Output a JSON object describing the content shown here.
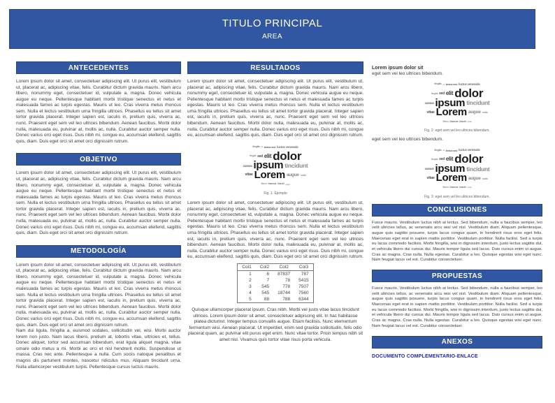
{
  "banner": {
    "title": "TITULO PRINCIPAL",
    "subtitle": "AREA"
  },
  "colors": {
    "accent": "#3156a2",
    "accent_border": "#27457f",
    "link": "#2222c8"
  },
  "left": {
    "antecedentes": {
      "title": "ANTECEDENTES",
      "body": "Lorem ipsum dolor sit amet, consectetuer adipiscing elit. Ut purus elit, vestibulum ut, placerat ac, adipiscing vitae, felis. Curabitur dictum gravida mauris. Nam arcu libero, nonummy eget, consectetuer id, vulputate a, magna. Donec vehicula augue eu neque. Pellentesque habitant morbi tristique senectus et netus et malesuada fames ac turpis egestas. Mauris ut leo. Cras viverra metus rhoncus sem. Nulla et lectus vestibulum urna fringilla ultrices. Phasellus eu tellus sit amet tortor gravida placerat. Integer sapien est, iaculis in, pretium quis, viverra ac, nunc. Praesent eget sem vel leo ultrices bibendum. Aenean faucibus. Morbi dolor nulla, malesuada eu, pulvinar at, mollis ac, nulla. Curabitur auctor semper nulla. Donec varius orci eget risus. Duis nibh mi, congue eu, accumsan eleifend, sagittis quis, diam. Duis eget orci sit amet orci dignissim rutrum."
    },
    "objetivo": {
      "title": "OBJETIVO",
      "body": "Lorem ipsum dolor sit amet, consectetuer adipiscing elit. Ut purus elit, vestibulum ut, placerat ac, adipiscing vitae, felis. Curabitur dictum gravida mauris. Nam arcu libero, nonummy eget, consectetuer id, vulputate a, magna. Donec vehicula augue eu neque. Pellentesque habitant morbi tristique senectus et netus et malesuada fames ac turpis egestas. Mauris ut leo. Cras viverra metus rhoncus sem. Nulla et lectus vestibulum urna fringilla ultrices. Phasellus eu tellus sit amet tortor gravida placerat. Integer sapien est, iaculis in, pretium quis, viverra ac, nunc. Praesent eget sem vel leo ultrices bibendum. Aenean faucibus. Morbi dolor nulla, malesuada eu, pulvinar at, mollis ac, nulla. Curabitur auctor semper nulla. Donec varius orci eget risus. Duis nibh mi, congue eu, accumsan eleifend, sagittis quis, diam. Duis eget orci sit amet orci dignissim rutrum."
    },
    "metodologia": {
      "title": "METODOLOGÍA",
      "body1": "Lorem ipsum dolor sit amet, consectetuer adipiscing elit. Ut purus elit, vestibulum ut, placerat ac, adipiscing vitae, felis. Curabitur dictum gravida mauris. Nam arcu libero, nonummy eget, consectetuer id, vulputate a, magna. Donec vehicula augue eu neque. Pellentesque habitant morbi tristique senectus et netus et malesuada fames ac turpis egestas. Mauris ut leo. Cras viverra metus rhoncus sem. Nulla et lectus vestibulum urna fringilla ultrices. Phasellus eu tellus sit amet tortor gravida placerat. Integer sapien est, iaculis in, pretium quis, viverra ac, nunc. Praesent eget sem vel leo ultrices bibendum. Aenean faucibus. Morbi dolor nulla, malesuada eu, pulvinar at, mollis ac, nulla. Curabitur auctor semper nulla. Donec varius orci eget risus. Duis nibh mi, congue eu, accumsan eleifend, sagittis quis, diam. Duis eget orci sit amet orci dignissim rutrum.",
      "body2": "Nam dui ligula, fringilla a, euismod sodales, sollicitudin vel, wisi. Morbi auctor lorem non justo. Nam lacus libero, pretium at, lobortis vitae, ultricies et, tellus. Donec aliquet, tortor sed accumsan bibendum, erat ligula aliquet magna, vitae ornare odio metus a mi. Morbi ac orci et nisl hendrerit mollis. Suspendisse ut massa. Cras nec ante. Pellentesque a nulla. Cum sociis natoque penatibus et magnis dis parturient montes, nascetur ridiculus mus. Aliquam tincidunt urna. Nulla ullamcorper vestibulum turpis. Pellentesque cursus luctus mauris."
    }
  },
  "middle": {
    "resultados": {
      "title": "RESULTADOS",
      "body1": "Lorem ipsum dolor sit amet, consectetuer adipiscing elit. Ut purus elit, vestibulum ut, placerat ac, adipiscing vitae, felis. Curabitur dictum gravida mauris. Nam arcu libero, nonummy eget, consectetuer id, vulputate a, magna. Donec vehicula augue eu neque. Pellentesque habitant morbi tristique senectus et netus et malesuada fames ac turpis egestas. Mauris ut leo. Cras viverra metus rhoncus sem. Nulla et lectus vestibulum urna fringilla ultrices. Phasellus eu tellus sit amet tortor gravida placerat. Integer sapien est, iaculis in, pretium quis, viverra ac, nunc. Praesent eget sem vel leo ultrices bibendum. Aenean faucibus. Morbi dolor nulla, malesuada eu, pulvinar at, mollis ac, nulla. Curabitur auctor semper nulla. Donec varius orci eget risus. Duis nibh mi, congue eu, accumsan eleifend, sagittis quis, diam. Duis eget orci sit amet orci dignissim rutrum.",
      "fig1_caption": "Fig. 1: Ejemplo",
      "body2": "Lorem ipsum dolor sit amet, consectetuer adipiscing elit. Ut purus elit, vestibulum ut, placerat ac, adipiscing vitae, felis. Curabitur dictum gravida mauris. Nam arcu libero, nonummy eget, consectetuer id, vulputate a, magna. Donec vehicula augue eu neque. Pellentesque habitant morbi tristique senectus et netus et malesuada fames ac turpis egestas. Mauris ut leo. Cras viverra metus rhoncus sem. Nulla et lectus vestibulum urna fringilla ultrices. Phasellus eu tellus sit amet tortor gravida placerat. Integer sapien est, iaculis in, pretium quis, viverra ac, nunc. Praesent eget sem vel leo ultrices bibendum. Aenean faucibus. Morbi dolor nulla, malesuada eu, pulvinar at, mollis ac, nulla. Curabitur auctor semper nulla. Donec varius orci eget risus. Duis nibh mi, congue eu, accumsan eleifend, sagittis quis, diam. Duis eget orci sit amet orci dignissim rutrum.",
      "body3": "Quisque ullamcorper placerat ipsum. Cras nibh. Morbi vel justo vitae lacus tincidunt ultrices. Lorem ipsum dolor sit amet, consectetuer adipiscing elit. In hac habitasse platea dictumst. Integer tempus convallis augue. Etiam facilisis. Nunc elementum fermentum wisi. Aenean placerat. Ut imperdiet, enim sed gravida sollicitudin, felis odio placerat quam, ac pulvinar elit purus eget enim. Nunc vitae tortor. Proin tempus nibh sit amet nisl. Vivamus quis tortor vitae risus porta vehicula."
    }
  },
  "right": {
    "intro_heading": "Lorem ipsum dolor sit",
    "intro_line": "eget sem vel leo ultrices bibendum.",
    "fig2_caption": "Fig. 2: eget sem vel leo ultrices bibendum.",
    "mid_line": "eget sem vel leo ultrices bibendum.",
    "fig3_caption": "Fig. 3: eget sem vel leo ultrices bibendum.",
    "conclusiones": {
      "title": "CONCLUSIONES",
      "body": "Fusce mauris. Vestibulum luctus nibh at lectus. Sed bibendum, nulla a faucibus semper, leo velit ultricies tellus, ac venenatis arcu wisi vel nisl. Vestibulum diam. Aliquam pellentesque, augue quis sagittis posuere, turpis lacus congue quam, in hendrerit risus eros eget felis. Maecenas eget erat in sapien mattis porttitor. Vestibulum porttitor. Nulla facilisi. Sed a turpis eu lacus commodo facilisis. Morbi fringilla, wisi in dignissim interdum, justo lectus sagittis dui, et vehicula libero dui cursus dui. Mauris tempor ligula sed lacus. Duis cursus enim ut augue. Cras ac magna. Cras nulla. Nulla egestas. Curabitur a leo. Quisque egestas wisi eget nunc. Nam feugiat lacus vel est. Curabitur consectetuer."
    },
    "propuestas": {
      "title": "PROPUESTAS",
      "body": "Fusce mauris. Vestibulum luctus nibh at lectus. Sed bibendum, nulla a faucibus semper, leo velit ultricies tellus, ac venenatis arcu wisi vel nisl. Vestibulum diam. Aliquam pellentesque, augue quis sagittis posuere, turpis lacus congue quam, in hendrerit risus eros eget felis. Maecenas eget erat in sapien mattis porttitor. Vestibulum porttitor. Nulla facilisi. Sed a turpis eu lacus commodo facilisis. Morbi fringilla, wisi in dignissim interdum, justo lectus sagittis dui, et vehicula libero dui cursus dui. Mauris tempor ligula sed lacus. Duis cursus enim ut augue. Cras ac magna. Cras nulla. Nulla egestas. Curabitur a leo. Quisque egestas wisi eget nunc. Nam feugiat lacus vel est. Curabitur consectetuer."
    },
    "anexos": {
      "title": "ANEXOS",
      "link_label": "DOCUMENTO COMPLEMENTARIO-ENLACE"
    }
  },
  "table": {
    "headers": [
      "Col1",
      "Col2",
      "Col2",
      "Col3"
    ],
    "rows": [
      [
        "1",
        "6",
        "87837",
        "787"
      ],
      [
        "2",
        "7",
        "78",
        "5415"
      ],
      [
        "3",
        "545",
        "778",
        "7507"
      ],
      [
        "4",
        "545",
        "18744",
        "7560"
      ],
      [
        "5",
        "88",
        "788",
        "6344"
      ]
    ]
  },
  "wordcloud": {
    "rows": [
      [
        {
          "t": "fringilla",
          "s": 3.5,
          "c": "#8a8a8a"
        },
        {
          "t": "ut",
          "s": 3,
          "c": "#9a9a9a"
        },
        {
          "t": "lectus sed",
          "s": 4,
          "c": "#6a6a6a"
        },
        {
          "t": "luctus venenatis",
          "s": 4.5,
          "c": "#777777"
        }
      ],
      [
        {
          "t": "feugiat",
          "s": 3.5,
          "c": "#999999"
        },
        {
          "t": "sed",
          "s": 5,
          "c": "#555555"
        },
        {
          "t": "elit",
          "s": 8,
          "c": "#3a3a3a"
        },
        {
          "t": "dolor",
          "s": 17,
          "c": "#1c1c1c"
        }
      ],
      [
        {
          "t": "cursus",
          "s": 4.5,
          "c": "#666666"
        },
        {
          "t": "ipsum",
          "s": 15,
          "c": "#141414"
        },
        {
          "t": "tincidunt",
          "s": 8.5,
          "c": "#8c8c8c"
        }
      ],
      [
        {
          "t": "vitae",
          "s": 5.5,
          "c": "#555555"
        },
        {
          "t": "Lorem",
          "s": 15,
          "c": "#141414"
        },
        {
          "t": "augue",
          "s": 6.5,
          "c": "#888888"
        },
        {
          "t": "nulla",
          "s": 4,
          "c": "#999999"
        }
      ],
      [
        {
          "t": "libero",
          "s": 3.5,
          "c": "#999999"
        },
        {
          "t": "rhoncus",
          "s": 3.5,
          "c": "#777777"
        },
        {
          "t": "blandit",
          "s": 3.5,
          "c": "#8a8a8a"
        },
        {
          "t": "amet",
          "s": 3,
          "c": "#9a9a9a"
        }
      ]
    ]
  }
}
